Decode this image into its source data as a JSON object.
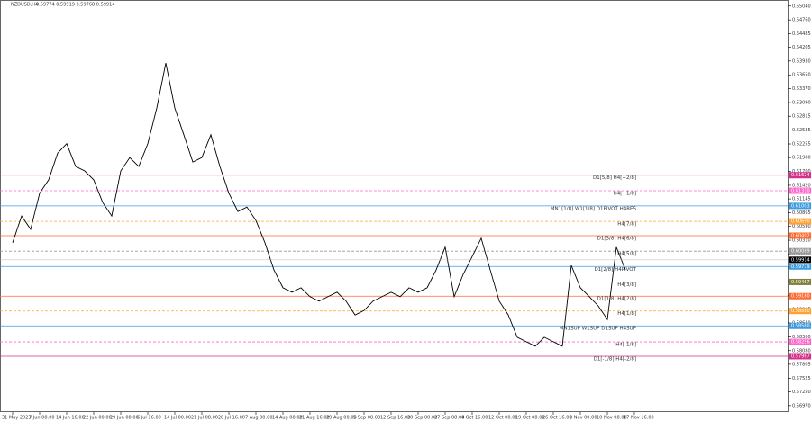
{
  "chart_data": {
    "type": "line",
    "title": "NZDUSD,H4",
    "subtitle": "0.59774 0.59919 0.59768 0.59914",
    "color": "#000000",
    "categories": [
      "31 May 2023",
      null,
      null,
      "7 Jun 08:00",
      null,
      null,
      "14 Jun 16:00",
      null,
      null,
      "22 Jun 00:00",
      null,
      null,
      "29 Jun 08:00",
      null,
      null,
      "6 Jul 16:00",
      null,
      null,
      "14 Jul 00:00",
      null,
      null,
      "21 Jul 08:00",
      null,
      null,
      "28 Jul 16:00",
      null,
      null,
      "7 Aug 00:00",
      null,
      null,
      "14 Aug 08:00",
      null,
      null,
      "21 Aug 16:00",
      null,
      null,
      "29 Aug 00:00",
      null,
      null,
      "5 Sep 08:00",
      null,
      null,
      "12 Sep 16:00",
      null,
      null,
      "20 Sep 00:00",
      null,
      null,
      "27 Sep 08:00",
      null,
      null,
      "4 Oct 16:00",
      null,
      null,
      "12 Oct 00:00",
      null,
      null,
      "19 Oct 08:00",
      null,
      null,
      "26 Oct 16:00",
      null,
      null,
      "3 Nov 00:00",
      null,
      null,
      "10 Nov 08:00",
      null,
      null,
      "17 Nov 16:00"
    ],
    "values": [
      0.6026,
      0.608,
      0.6053,
      0.6126,
      0.6153,
      0.6207,
      0.6226,
      0.618,
      0.6171,
      0.6153,
      0.6107,
      0.608,
      0.6171,
      0.6198,
      0.618,
      0.6226,
      0.6298,
      0.6389,
      0.6298,
      0.6244,
      0.6189,
      0.6198,
      0.6244,
      0.618,
      0.6126,
      0.6089,
      0.6098,
      0.6071,
      0.6026,
      0.5971,
      0.5935,
      0.5926,
      0.5935,
      0.5917,
      0.5908,
      0.5917,
      0.5926,
      0.5908,
      0.588,
      0.5889,
      0.5908,
      0.5917,
      0.5926,
      0.5917,
      0.5935,
      0.5926,
      0.5935,
      0.5971,
      0.6017,
      0.5917,
      0.5962,
      0.5998,
      0.6035,
      0.5971,
      0.5908,
      0.588,
      0.5835,
      0.5826,
      0.5817,
      0.5835,
      0.5826,
      0.5817,
      0.598,
      0.5935,
      0.5917,
      0.5898,
      0.5871,
      0.6017,
      0.5971,
      null
    ],
    "ylim": [
      0.5684,
      0.6509
    ],
    "yticks": [
      {
        "value": 0.5697,
        "label": "0.56970"
      },
      {
        "value": 0.5725,
        "label": "0.57250"
      },
      {
        "value": 0.57525,
        "label": "0.57525"
      },
      {
        "value": 0.57805,
        "label": "0.57805"
      },
      {
        "value": 0.5808,
        "label": "0.58080"
      },
      {
        "value": 0.5836,
        "label": "0.58360"
      },
      {
        "value": 0.5864,
        "label": "0.58640"
      },
      {
        "value": 0.58915,
        "label": "0.58915"
      },
      {
        "value": 0.59195,
        "label": "0.59195"
      },
      {
        "value": 0.59475,
        "label": "0.59475"
      },
      {
        "value": 0.5975,
        "label": "0.59750"
      },
      {
        "value": 0.6003,
        "label": "0.60030"
      },
      {
        "value": 0.6031,
        "label": "0.60310"
      },
      {
        "value": 0.6059,
        "label": "0.60590"
      },
      {
        "value": 0.60865,
        "label": "0.60865"
      },
      {
        "value": 0.61145,
        "label": "0.61145"
      },
      {
        "value": 0.6142,
        "label": "0.61420"
      },
      {
        "value": 0.617,
        "label": "0.61700"
      },
      {
        "value": 0.6198,
        "label": "0.61980"
      },
      {
        "value": 0.62255,
        "label": "0.62255"
      },
      {
        "value": 0.62535,
        "label": "0.62535"
      },
      {
        "value": 0.62815,
        "label": "0.62815"
      },
      {
        "value": 0.6309,
        "label": "0.63090"
      },
      {
        "value": 0.6337,
        "label": "0.63370"
      },
      {
        "value": 0.6365,
        "label": "0.63650"
      },
      {
        "value": 0.6393,
        "label": "0.63930"
      },
      {
        "value": 0.64205,
        "label": "0.64205"
      },
      {
        "value": 0.64485,
        "label": "0.64485"
      },
      {
        "value": 0.6476,
        "label": "0.64760"
      },
      {
        "value": 0.6504,
        "label": "0.65040"
      }
    ],
    "levels": [
      {
        "name": "D1[5/8] H4[+2/8]",
        "value": 0.61624,
        "label": "0.61624",
        "color": "#d6308a",
        "dashed": false
      },
      {
        "name": "H4[+1/8]",
        "value": 0.6131,
        "label": "0.61310",
        "color": "#ff66cc",
        "dashed": true
      },
      {
        "name": "MN1[1/8] W1[1/8] D1PIVOT H4RES",
        "value": 0.61003,
        "label": "0.61003",
        "color": "#3d9be0",
        "dashed": false
      },
      {
        "name": "H4[7/8]",
        "value": 0.6069,
        "label": "0.60690",
        "color": "#ffa030",
        "dashed": true
      },
      {
        "name": "D1[3/8] H4[6/8]",
        "value": 0.60402,
        "label": "0.60402",
        "color": "#ff6a30",
        "dashed": false
      },
      {
        "name": "H4[5/8]",
        "value": 0.60089,
        "label": "0.60089",
        "color": "#999999",
        "dashed": true
      },
      {
        "name": "D1[2/8] H4PIVOT",
        "value": 0.59779,
        "label": "0.59779",
        "color": "#3d9be0",
        "dashed": false
      },
      {
        "name": "H4[3/8]",
        "value": 0.59467,
        "label": "0.59467",
        "color": "#808040",
        "dashed": true
      },
      {
        "name": "D1[1/8] H4[2/8]",
        "value": 0.5918,
        "label": "0.59180",
        "color": "#ff6a30",
        "dashed": false
      },
      {
        "name": "H4[1/8]",
        "value": 0.5888,
        "label": "0.58880",
        "color": "#ffa030",
        "dashed": true
      },
      {
        "name": "MN1SUP W1SUP D1SUP H4SUP",
        "value": 0.5858,
        "label": "0.58580",
        "color": "#3d9be0",
        "dashed": false
      },
      {
        "name": "H4[-1/8]",
        "value": 0.58256,
        "label": "0.58256",
        "color": "#ff66cc",
        "dashed": true
      },
      {
        "name": "D1[-1/8] H4[-2/8]",
        "value": 0.57967,
        "label": "0.57967",
        "color": "#d6308a",
        "dashed": false
      }
    ],
    "current_price": {
      "value": 0.59914,
      "label": "0.59914"
    }
  }
}
